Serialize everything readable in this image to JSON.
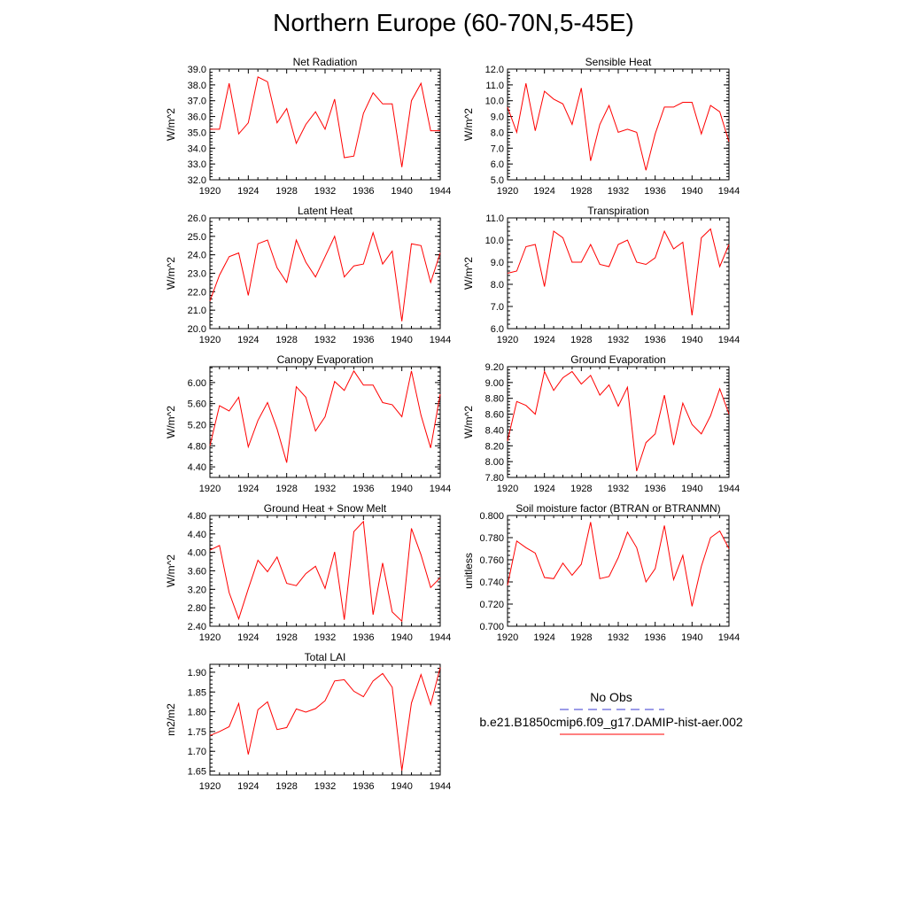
{
  "figure": {
    "title": "Northern Europe (60-70N,5-45E)"
  },
  "legend": {
    "obs_label": "No Obs",
    "run_label": "b.e21.B1850cmip6.f09_g17.DAMIP-hist-aer.002",
    "obs_color": "#3a3ad0",
    "run_color": "#ff0000"
  },
  "chart_data": [
    {
      "type": "line",
      "title": "Net Radiation",
      "ylabel": "W/m^2",
      "xlim": [
        1920,
        1944
      ],
      "ylim": [
        32.0,
        39.0
      ],
      "xticks": [
        1920,
        1924,
        1928,
        1932,
        1936,
        1940,
        1944
      ],
      "yticks": [
        32.0,
        33.0,
        34.0,
        35.0,
        36.0,
        37.0,
        38.0,
        39.0
      ],
      "ydec": 1,
      "x": [
        1920,
        1921,
        1922,
        1923,
        1924,
        1925,
        1926,
        1927,
        1928,
        1929,
        1930,
        1931,
        1932,
        1933,
        1934,
        1935,
        1936,
        1937,
        1938,
        1939,
        1940,
        1941,
        1942,
        1943,
        1944
      ],
      "series": [
        {
          "name": "b.e21.B1850cmip6.f09_g17.DAMIP-hist-aer.002",
          "color": "#ff0000",
          "values": [
            35.2,
            35.2,
            38.1,
            34.9,
            35.6,
            38.5,
            38.2,
            35.6,
            36.5,
            34.3,
            35.5,
            36.3,
            35.2,
            37.1,
            33.4,
            33.5,
            36.2,
            37.5,
            36.8,
            36.8,
            32.8,
            37.0,
            38.1,
            35.1,
            35.1
          ]
        }
      ]
    },
    {
      "type": "line",
      "title": "Sensible Heat",
      "ylabel": "W/m^2",
      "xlim": [
        1920,
        1944
      ],
      "ylim": [
        5.0,
        12.0
      ],
      "xticks": [
        1920,
        1924,
        1928,
        1932,
        1936,
        1940,
        1944
      ],
      "yticks": [
        5.0,
        6.0,
        7.0,
        8.0,
        9.0,
        10.0,
        11.0,
        12.0
      ],
      "ydec": 1,
      "x": [
        1920,
        1921,
        1922,
        1923,
        1924,
        1925,
        1926,
        1927,
        1928,
        1929,
        1930,
        1931,
        1932,
        1933,
        1934,
        1935,
        1936,
        1937,
        1938,
        1939,
        1940,
        1941,
        1942,
        1943,
        1944
      ],
      "series": [
        {
          "name": "b.e21.B1850cmip6.f09_g17.DAMIP-hist-aer.002",
          "color": "#ff0000",
          "values": [
            9.6,
            8.0,
            11.1,
            8.1,
            10.6,
            10.1,
            9.8,
            8.5,
            10.8,
            6.2,
            8.5,
            9.7,
            8.0,
            8.2,
            8.0,
            5.6,
            7.9,
            9.6,
            9.6,
            9.9,
            9.9,
            7.9,
            9.7,
            9.3,
            7.4
          ]
        }
      ]
    },
    {
      "type": "line",
      "title": "Latent Heat",
      "ylabel": "W/m^2",
      "xlim": [
        1920,
        1944
      ],
      "ylim": [
        20.0,
        26.0
      ],
      "xticks": [
        1920,
        1924,
        1928,
        1932,
        1936,
        1940,
        1944
      ],
      "yticks": [
        20.0,
        21.0,
        22.0,
        23.0,
        24.0,
        25.0,
        26.0
      ],
      "ydec": 1,
      "x": [
        1920,
        1921,
        1922,
        1923,
        1924,
        1925,
        1926,
        1927,
        1928,
        1929,
        1930,
        1931,
        1932,
        1933,
        1934,
        1935,
        1936,
        1937,
        1938,
        1939,
        1940,
        1941,
        1942,
        1943,
        1944
      ],
      "series": [
        {
          "name": "b.e21.B1850cmip6.f09_g17.DAMIP-hist-aer.002",
          "color": "#ff0000",
          "values": [
            21.5,
            22.9,
            23.9,
            24.1,
            21.8,
            24.6,
            24.8,
            23.3,
            22.5,
            24.8,
            23.6,
            22.8,
            23.9,
            25.0,
            22.8,
            23.4,
            23.5,
            25.2,
            23.5,
            24.2,
            20.4,
            24.6,
            24.5,
            22.5,
            24.1
          ]
        }
      ]
    },
    {
      "type": "line",
      "title": "Transpiration",
      "ylabel": "W/m^2",
      "xlim": [
        1920,
        1944
      ],
      "ylim": [
        6.0,
        11.0
      ],
      "xticks": [
        1920,
        1924,
        1928,
        1932,
        1936,
        1940,
        1944
      ],
      "yticks": [
        6.0,
        7.0,
        8.0,
        9.0,
        10.0,
        11.0
      ],
      "ydec": 1,
      "x": [
        1920,
        1921,
        1922,
        1923,
        1924,
        1925,
        1926,
        1927,
        1928,
        1929,
        1930,
        1931,
        1932,
        1933,
        1934,
        1935,
        1936,
        1937,
        1938,
        1939,
        1940,
        1941,
        1942,
        1943,
        1944
      ],
      "series": [
        {
          "name": "b.e21.B1850cmip6.f09_g17.DAMIP-hist-aer.002",
          "color": "#ff0000",
          "values": [
            8.5,
            8.6,
            9.7,
            9.8,
            7.9,
            10.4,
            10.1,
            9.0,
            9.0,
            9.8,
            8.9,
            8.8,
            9.8,
            10.0,
            9.0,
            8.9,
            9.2,
            10.4,
            9.6,
            9.9,
            6.6,
            10.1,
            10.5,
            8.8,
            9.8
          ]
        }
      ]
    },
    {
      "type": "line",
      "title": "Canopy Evaporation",
      "ylabel": "W/m^2",
      "xlim": [
        1920,
        1944
      ],
      "ylim": [
        4.2,
        6.3
      ],
      "xticks": [
        1920,
        1924,
        1928,
        1932,
        1936,
        1940,
        1944
      ],
      "yticks": [
        4.4,
        4.8,
        5.2,
        5.6,
        6.0
      ],
      "ydec": 2,
      "x": [
        1920,
        1921,
        1922,
        1923,
        1924,
        1925,
        1926,
        1927,
        1928,
        1929,
        1930,
        1931,
        1932,
        1933,
        1934,
        1935,
        1936,
        1937,
        1938,
        1939,
        1940,
        1941,
        1942,
        1943,
        1944
      ],
      "series": [
        {
          "name": "b.e21.B1850cmip6.f09_g17.DAMIP-hist-aer.002",
          "color": "#ff0000",
          "values": [
            4.8,
            5.56,
            5.46,
            5.72,
            4.78,
            5.28,
            5.62,
            5.12,
            4.48,
            5.92,
            5.72,
            5.08,
            5.35,
            6.02,
            5.85,
            6.22,
            5.95,
            5.95,
            5.62,
            5.58,
            5.35,
            6.22,
            5.38,
            4.76,
            5.78
          ]
        }
      ]
    },
    {
      "type": "line",
      "title": "Ground Evaporation",
      "ylabel": "W/m^2",
      "xlim": [
        1920,
        1944
      ],
      "ylim": [
        7.8,
        9.2
      ],
      "xticks": [
        1920,
        1924,
        1928,
        1932,
        1936,
        1940,
        1944
      ],
      "yticks": [
        7.8,
        8.0,
        8.2,
        8.4,
        8.6,
        8.8,
        9.0,
        9.2
      ],
      "ydec": 2,
      "x": [
        1920,
        1921,
        1922,
        1923,
        1924,
        1925,
        1926,
        1927,
        1928,
        1929,
        1930,
        1931,
        1932,
        1933,
        1934,
        1935,
        1936,
        1937,
        1938,
        1939,
        1940,
        1941,
        1942,
        1943,
        1944
      ],
      "series": [
        {
          "name": "b.e21.B1850cmip6.f09_g17.DAMIP-hist-aer.002",
          "color": "#ff0000",
          "values": [
            8.26,
            8.76,
            8.71,
            8.6,
            9.14,
            8.9,
            9.06,
            9.14,
            8.98,
            9.09,
            8.84,
            8.97,
            8.7,
            8.94,
            7.88,
            8.24,
            8.35,
            8.84,
            8.21,
            8.74,
            8.47,
            8.35,
            8.58,
            8.92,
            8.6
          ]
        }
      ]
    },
    {
      "type": "line",
      "title": "Ground Heat + Snow Melt",
      "ylabel": "W/m^2",
      "xlim": [
        1920,
        1944
      ],
      "ylim": [
        2.4,
        4.8
      ],
      "xticks": [
        1920,
        1924,
        1928,
        1932,
        1936,
        1940,
        1944
      ],
      "yticks": [
        2.4,
        2.8,
        3.2,
        3.6,
        4.0,
        4.4,
        4.8
      ],
      "ydec": 2,
      "x": [
        1920,
        1921,
        1922,
        1923,
        1924,
        1925,
        1926,
        1927,
        1928,
        1929,
        1930,
        1931,
        1932,
        1933,
        1934,
        1935,
        1936,
        1937,
        1938,
        1939,
        1940,
        1941,
        1942,
        1943,
        1944
      ],
      "series": [
        {
          "name": "b.e21.B1850cmip6.f09_g17.DAMIP-hist-aer.002",
          "color": "#ff0000",
          "values": [
            4.05,
            4.15,
            3.13,
            2.56,
            3.21,
            3.83,
            3.58,
            3.9,
            3.33,
            3.28,
            3.54,
            3.7,
            3.22,
            4.01,
            2.54,
            4.45,
            4.67,
            2.65,
            3.77,
            2.71,
            2.51,
            4.52,
            3.95,
            3.24,
            3.45
          ]
        }
      ]
    },
    {
      "type": "line",
      "title": "Soil moisture factor (BTRAN or BTRANMN)",
      "ylabel": "unitless",
      "xlim": [
        1920,
        1944
      ],
      "ylim": [
        0.7,
        0.8
      ],
      "xticks": [
        1920,
        1924,
        1928,
        1932,
        1936,
        1940,
        1944
      ],
      "yticks": [
        0.7,
        0.72,
        0.74,
        0.76,
        0.78,
        0.8
      ],
      "ydec": 3,
      "x": [
        1920,
        1921,
        1922,
        1923,
        1924,
        1925,
        1926,
        1927,
        1928,
        1929,
        1930,
        1931,
        1932,
        1933,
        1934,
        1935,
        1936,
        1937,
        1938,
        1939,
        1940,
        1941,
        1942,
        1943,
        1944
      ],
      "series": [
        {
          "name": "b.e21.B1850cmip6.f09_g17.DAMIP-hist-aer.002",
          "color": "#ff0000",
          "values": [
            0.737,
            0.777,
            0.771,
            0.766,
            0.744,
            0.743,
            0.757,
            0.746,
            0.756,
            0.794,
            0.743,
            0.745,
            0.762,
            0.785,
            0.771,
            0.74,
            0.752,
            0.791,
            0.742,
            0.764,
            0.718,
            0.754,
            0.78,
            0.786,
            0.77
          ]
        }
      ]
    },
    {
      "type": "line",
      "title": "Total LAI",
      "ylabel": "m2/m2",
      "xlim": [
        1920,
        1944
      ],
      "ylim": [
        1.64,
        1.92
      ],
      "xticks": [
        1920,
        1924,
        1928,
        1932,
        1936,
        1940,
        1944
      ],
      "yticks": [
        1.65,
        1.7,
        1.75,
        1.8,
        1.85,
        1.9
      ],
      "ydec": 2,
      "x": [
        1920,
        1921,
        1922,
        1923,
        1924,
        1925,
        1926,
        1927,
        1928,
        1929,
        1930,
        1931,
        1932,
        1933,
        1934,
        1935,
        1936,
        1937,
        1938,
        1939,
        1940,
        1941,
        1942,
        1943,
        1944
      ],
      "series": [
        {
          "name": "b.e21.B1850cmip6.f09_g17.DAMIP-hist-aer.002",
          "color": "#ff0000",
          "values": [
            1.74,
            1.75,
            1.762,
            1.821,
            1.692,
            1.805,
            1.825,
            1.755,
            1.76,
            1.807,
            1.799,
            1.808,
            1.828,
            1.878,
            1.881,
            1.852,
            1.838,
            1.878,
            1.897,
            1.862,
            1.651,
            1.822,
            1.894,
            1.818,
            1.912
          ]
        }
      ]
    }
  ]
}
